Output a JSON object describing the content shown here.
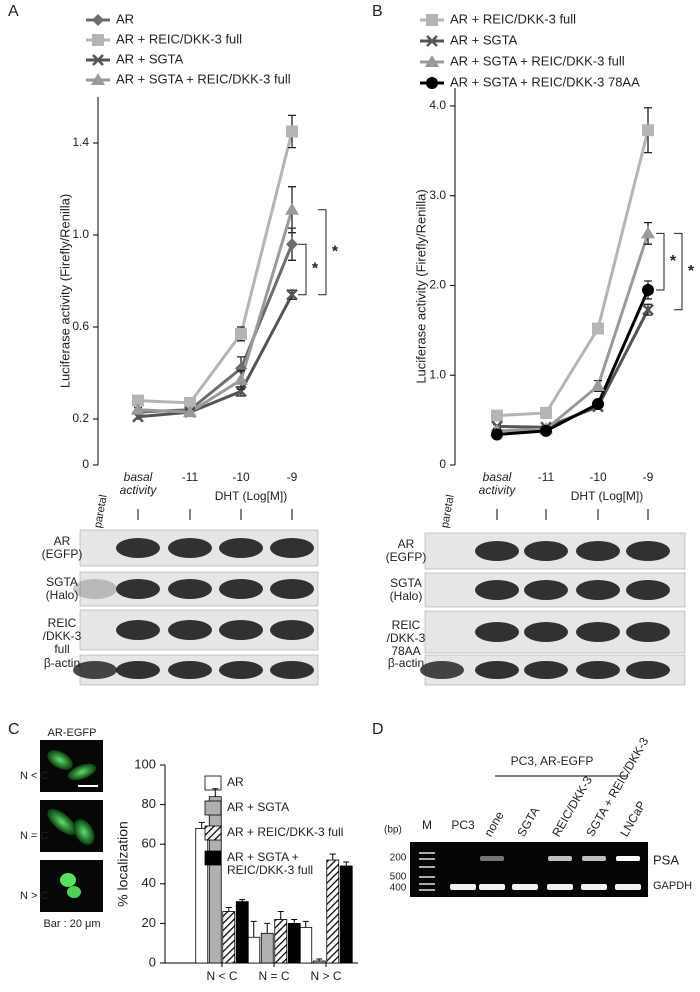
{
  "panels": [
    "A",
    "B",
    "C",
    "D"
  ],
  "chart_data": [
    {
      "type": "line",
      "ylabel": "Luciferase activity (Firefly/Renilla)",
      "xlabel": "DHT (Log[M])",
      "categories": [
        "basal activity",
        "-11",
        "-10",
        "-9"
      ],
      "ylim": [
        0,
        1.6
      ],
      "yticks": [
        0,
        0.2,
        0.6,
        {
          "value": 1,
          "label": "1.0"
        },
        1.4
      ],
      "annotations": [
        "*",
        "*"
      ],
      "series": [
        {
          "name": "AR",
          "color": "#6d6d6d",
          "marker": "diamond",
          "values": [
            0.23,
            0.24,
            0.42,
            0.96
          ],
          "errors": [
            0.01,
            0.01,
            0.05,
            0.07
          ]
        },
        {
          "name": "AR + REIC/DKK-3 full",
          "color": "#b5b5b5",
          "marker": "square",
          "values": [
            0.28,
            0.27,
            0.57,
            1.45
          ],
          "errors": [
            0.01,
            0.01,
            0.03,
            0.07
          ]
        },
        {
          "name": "AR + SGTA",
          "color": "#555555",
          "marker": "x",
          "values": [
            0.21,
            0.23,
            0.32,
            0.74
          ],
          "errors": [
            0.01,
            0.01,
            0.02,
            0.02
          ]
        },
        {
          "name": "AR + SGTA + REIC/DKK-3 full",
          "color": "#9a9a9a",
          "marker": "triangle",
          "values": [
            0.24,
            0.23,
            0.37,
            1.11
          ],
          "errors": [
            0.01,
            0.01,
            0.04,
            0.1
          ]
        }
      ]
    },
    {
      "type": "line",
      "ylabel": "Luciferase activity (Firefly/Renilla)",
      "xlabel": "DHT (Log[M])",
      "categories": [
        "basal activity",
        "-11",
        "-10",
        "-9"
      ],
      "ylim": [
        0,
        4.2
      ],
      "yticks": [
        0,
        {
          "value": 1,
          "label": "1.0"
        },
        {
          "value": 2,
          "label": "2.0"
        },
        {
          "value": 3,
          "label": "3.0"
        },
        {
          "value": 4,
          "label": "4.0"
        }
      ],
      "annotations": [
        "*",
        "*"
      ],
      "series": [
        {
          "name": "AR + REIC/DKK-3 full",
          "color": "#b5b5b5",
          "marker": "square",
          "values": [
            0.55,
            0.58,
            1.52,
            3.73
          ],
          "errors": [
            0.03,
            0.03,
            0.04,
            0.25
          ]
        },
        {
          "name": "AR + SGTA",
          "color": "#555555",
          "marker": "x",
          "values": [
            0.43,
            0.42,
            0.65,
            1.73
          ],
          "errors": [
            0.02,
            0.02,
            0.03,
            0.06
          ]
        },
        {
          "name": "AR + SGTA + REIC/DKK-3 full",
          "color": "#9a9a9a",
          "marker": "triangle",
          "values": [
            0.38,
            0.4,
            0.88,
            2.58
          ],
          "errors": [
            0.02,
            0.02,
            0.06,
            0.12
          ]
        },
        {
          "name": "AR + SGTA + REIC/DKK-3 78AA",
          "color": "#000000",
          "marker": "circle",
          "values": [
            0.34,
            0.38,
            0.68,
            1.95
          ],
          "errors": [
            0.02,
            0.02,
            0.04,
            0.1
          ]
        }
      ]
    },
    {
      "type": "bar",
      "ylabel": "% localization",
      "categories": [
        "N < C",
        "N = C",
        "N > C"
      ],
      "ylim": [
        0,
        100
      ],
      "yticks": [
        0,
        20,
        40,
        60,
        80,
        100
      ],
      "series": [
        {
          "name": "AR",
          "color": "#ffffff",
          "values": [
            68,
            13,
            18
          ],
          "errors": [
            3,
            8,
            3
          ]
        },
        {
          "name": "AR + SGTA",
          "color": "#b0b0b0",
          "values": [
            84,
            15,
            1
          ],
          "errors": [
            4,
            5,
            1
          ]
        },
        {
          "name": "AR + REIC/DKK-3 full",
          "color": "#ffffff",
          "hatch": true,
          "values": [
            26,
            22,
            52
          ],
          "errors": [
            2,
            4,
            3
          ]
        },
        {
          "name": "AR + SGTA + REIC/DKK-3 full",
          "color": "#000000",
          "values": [
            31,
            20,
            49
          ],
          "errors": [
            1,
            2,
            2
          ]
        }
      ]
    }
  ],
  "blots": [
    {
      "lane": "paretal",
      "rows": [
        "AR (EGFP)",
        "SGTA (Halo)",
        "REIC /DKK-3 full",
        "β-actin"
      ]
    },
    {
      "lane": "paretal",
      "rows": [
        "AR (EGFP)",
        "SGTA (Halo)",
        "REIC /DKK-3 78AA",
        "β-actin"
      ]
    }
  ],
  "micrographs": {
    "title": "AR-EGFP",
    "rows": [
      "N < C",
      "N = C",
      "N > C"
    ],
    "scale_bar": "Bar : 20 μm"
  },
  "gel": {
    "group_label": "PC3, AR-EGFP",
    "unit": "(bp)",
    "lanes": [
      "M",
      "PC3",
      "none",
      "SGTA",
      "REIC/DKK-3",
      "SGTA + REIC/DKK-3",
      "LNCaP"
    ],
    "size_marks": [
      200,
      500,
      400
    ],
    "bands": [
      "PSA",
      "GAPDH"
    ]
  }
}
